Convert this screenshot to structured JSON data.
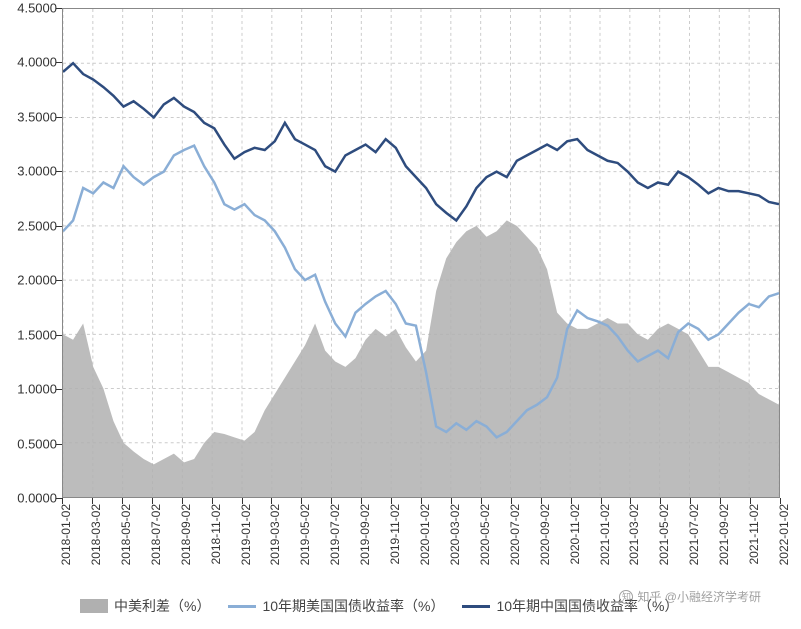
{
  "chart": {
    "type": "line+area",
    "background_color": "#ffffff",
    "grid_color": "#cccccc",
    "axis_color": "#888888",
    "text_color": "#333333",
    "label_fontsize": 13,
    "xtick_fontsize": 12,
    "ylim": [
      0.0,
      4.5
    ],
    "ytick_labels": [
      "0.0000",
      "0.5000",
      "1.0000",
      "1.5000",
      "2.0000",
      "2.5000",
      "3.0000",
      "3.5000",
      "4.0000",
      "4.5000"
    ],
    "ytick_step": 0.5,
    "xtick_labels": [
      "2018-01-02",
      "2018-03-02",
      "2018-05-02",
      "2018-07-02",
      "2018-09-02",
      "2018-11-02",
      "2019-01-02",
      "2019-03-02",
      "2019-05-02",
      "2019-07-02",
      "2019-09-02",
      "2019-11-02",
      "2020-01-02",
      "2020-03-02",
      "2020-05-02",
      "2020-07-02",
      "2020-09-02",
      "2020-11-02",
      "2021-01-02",
      "2021-03-02",
      "2021-05-02",
      "2021-07-02",
      "2021-09-02",
      "2021-11-02",
      "2022-01-02"
    ],
    "series": {
      "spread": {
        "label": "中美利差（%）",
        "color": "#b0b0b0",
        "type": "area",
        "values": [
          1.5,
          1.45,
          1.6,
          1.2,
          1.0,
          0.7,
          0.5,
          0.42,
          0.35,
          0.3,
          0.35,
          0.4,
          0.32,
          0.35,
          0.5,
          0.6,
          0.58,
          0.55,
          0.52,
          0.6,
          0.8,
          0.95,
          1.1,
          1.25,
          1.4,
          1.6,
          1.35,
          1.25,
          1.2,
          1.28,
          1.45,
          1.55,
          1.48,
          1.55,
          1.38,
          1.25,
          1.35,
          1.9,
          2.2,
          2.35,
          2.45,
          2.5,
          2.4,
          2.45,
          2.55,
          2.5,
          2.4,
          2.3,
          2.1,
          1.7,
          1.6,
          1.55,
          1.55,
          1.6,
          1.65,
          1.6,
          1.6,
          1.5,
          1.45,
          1.55,
          1.6,
          1.55,
          1.5,
          1.35,
          1.2,
          1.2,
          1.15,
          1.1,
          1.05,
          0.95,
          0.9,
          0.85
        ]
      },
      "us10y": {
        "label": "10年期美国国债收益率（%）",
        "color": "#8aaed6",
        "type": "line",
        "line_width": 2.5,
        "values": [
          2.45,
          2.55,
          2.85,
          2.8,
          2.9,
          2.85,
          3.05,
          2.95,
          2.88,
          2.95,
          3.0,
          3.15,
          3.2,
          3.24,
          3.05,
          2.9,
          2.7,
          2.65,
          2.7,
          2.6,
          2.55,
          2.45,
          2.3,
          2.1,
          2.0,
          2.05,
          1.8,
          1.6,
          1.48,
          1.7,
          1.78,
          1.85,
          1.9,
          1.78,
          1.6,
          1.58,
          1.15,
          0.65,
          0.6,
          0.68,
          0.62,
          0.7,
          0.65,
          0.55,
          0.6,
          0.7,
          0.8,
          0.85,
          0.92,
          1.1,
          1.55,
          1.72,
          1.65,
          1.62,
          1.58,
          1.48,
          1.35,
          1.25,
          1.3,
          1.35,
          1.28,
          1.52,
          1.6,
          1.55,
          1.45,
          1.5,
          1.6,
          1.7,
          1.78,
          1.75,
          1.85,
          1.88
        ]
      },
      "cn10y": {
        "label": "10年期中国国债收益率（%）",
        "color": "#2e4c7e",
        "type": "line",
        "line_width": 2.5,
        "values": [
          3.92,
          4.0,
          3.9,
          3.85,
          3.78,
          3.7,
          3.6,
          3.65,
          3.58,
          3.5,
          3.62,
          3.68,
          3.6,
          3.55,
          3.45,
          3.4,
          3.25,
          3.12,
          3.18,
          3.22,
          3.2,
          3.28,
          3.45,
          3.3,
          3.25,
          3.2,
          3.05,
          3.0,
          3.15,
          3.2,
          3.25,
          3.18,
          3.3,
          3.22,
          3.05,
          2.95,
          2.85,
          2.7,
          2.62,
          2.55,
          2.68,
          2.85,
          2.95,
          3.0,
          2.95,
          3.1,
          3.15,
          3.2,
          3.25,
          3.2,
          3.28,
          3.3,
          3.2,
          3.15,
          3.1,
          3.08,
          3.0,
          2.9,
          2.85,
          2.9,
          2.88,
          3.0,
          2.95,
          2.88,
          2.8,
          2.85,
          2.82,
          2.82,
          2.8,
          2.78,
          2.72,
          2.7
        ]
      }
    },
    "legend_position": "bottom",
    "watermark": "知乎 @小融经济学考研"
  }
}
